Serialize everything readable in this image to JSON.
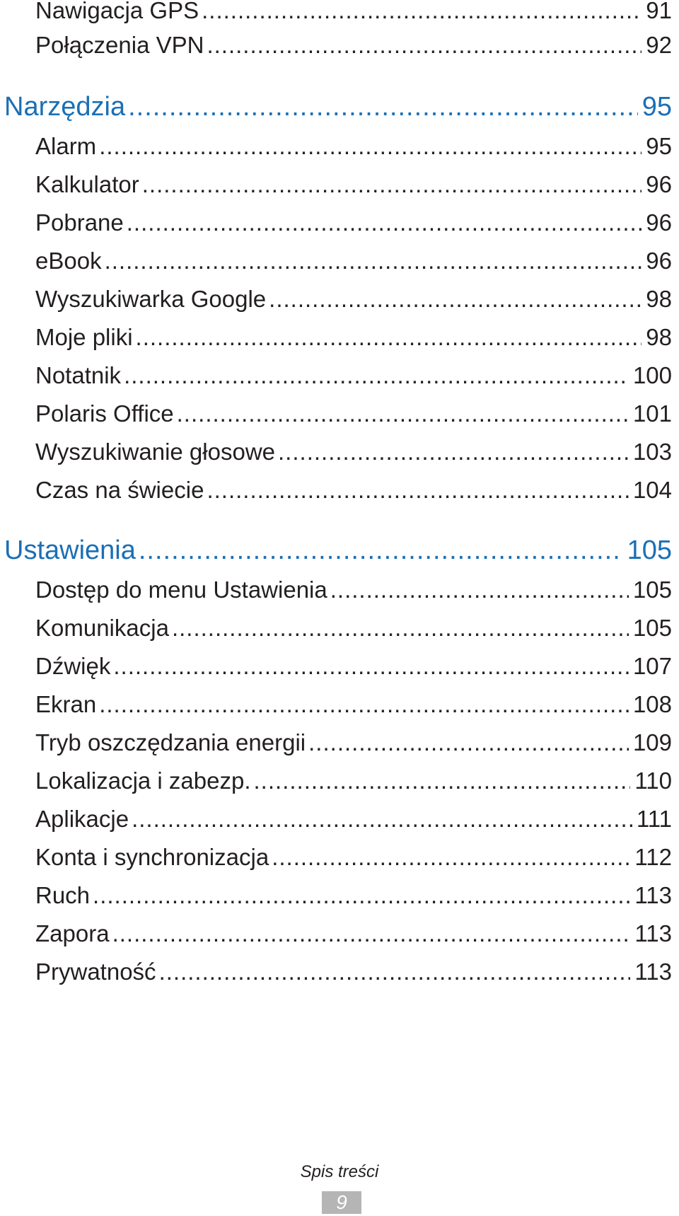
{
  "toc": [
    {
      "type": "entry",
      "label": "Nawigacja GPS",
      "page": "91"
    },
    {
      "type": "entry",
      "label": "Połączenia VPN",
      "page": "92"
    },
    {
      "type": "section",
      "label": "Narzędzia",
      "page": "95"
    },
    {
      "type": "entry",
      "label": "Alarm",
      "page": "95"
    },
    {
      "type": "entry",
      "label": "Kalkulator",
      "page": "96"
    },
    {
      "type": "entry",
      "label": "Pobrane",
      "page": "96"
    },
    {
      "type": "entry",
      "label": "eBook",
      "page": "96"
    },
    {
      "type": "entry",
      "label": "Wyszukiwarka Google",
      "page": "98"
    },
    {
      "type": "entry",
      "label": "Moje pliki",
      "page": "98"
    },
    {
      "type": "entry",
      "label": "Notatnik",
      "page": "100"
    },
    {
      "type": "entry",
      "label": "Polaris Office",
      "page": "101"
    },
    {
      "type": "entry",
      "label": "Wyszukiwanie głosowe",
      "page": "103"
    },
    {
      "type": "entry",
      "label": "Czas na świecie",
      "page": "104"
    },
    {
      "type": "section",
      "label": "Ustawienia",
      "page": "105"
    },
    {
      "type": "entry",
      "label": "Dostęp do menu Ustawienia",
      "page": "105"
    },
    {
      "type": "entry",
      "label": "Komunikacja",
      "page": "105"
    },
    {
      "type": "entry",
      "label": "Dźwięk",
      "page": "107"
    },
    {
      "type": "entry",
      "label": "Ekran",
      "page": "108"
    },
    {
      "type": "entry",
      "label": "Tryb oszczędzania energii",
      "page": "109"
    },
    {
      "type": "entry",
      "label": "Lokalizacja i zabezp.",
      "page": "110"
    },
    {
      "type": "entry",
      "label": "Aplikacje",
      "page": "111"
    },
    {
      "type": "entry",
      "label": "Konta i synchronizacja",
      "page": "112"
    },
    {
      "type": "entry",
      "label": "Ruch",
      "page": "113"
    },
    {
      "type": "entry",
      "label": "Zapora",
      "page": "113"
    },
    {
      "type": "entry",
      "label": "Prywatność",
      "page": "113"
    }
  ],
  "footer": {
    "section_title": "Spis treści",
    "page_number": "9"
  },
  "colors": {
    "section": "#1b6fb5",
    "text": "#231f20",
    "page_box": "#b5b5b5"
  }
}
